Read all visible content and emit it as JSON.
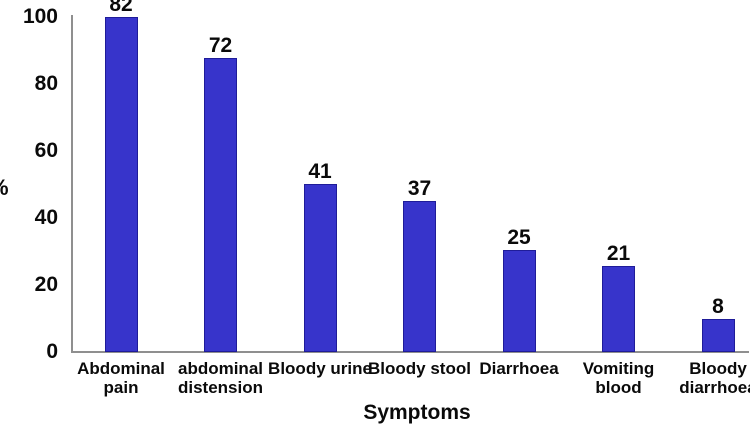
{
  "chart_data": {
    "type": "bar",
    "title": "",
    "xlabel": "Symptoms",
    "ylabel": "%",
    "categories": [
      "Abdominal pain",
      "abdominal distension",
      "Bloody urine",
      "Bloody stool",
      "Diarrhoea",
      "Vomiting blood",
      "Bloody diarrhoea"
    ],
    "values": [
      82,
      72,
      41,
      37,
      25,
      21,
      8
    ],
    "value_labels": [
      "82",
      "72",
      "41",
      "37",
      "25",
      "21",
      "8"
    ],
    "ylim": [
      0,
      100
    ],
    "yticks": [
      0,
      20,
      40,
      60,
      80,
      100
    ],
    "grid": false,
    "legend": false,
    "bar_scale_max": 82,
    "bar_color": "#3734cb",
    "bar_border_color": "#1f1c99",
    "axis_color": "#8f8f8f",
    "text_color": "#0a0a0a"
  }
}
